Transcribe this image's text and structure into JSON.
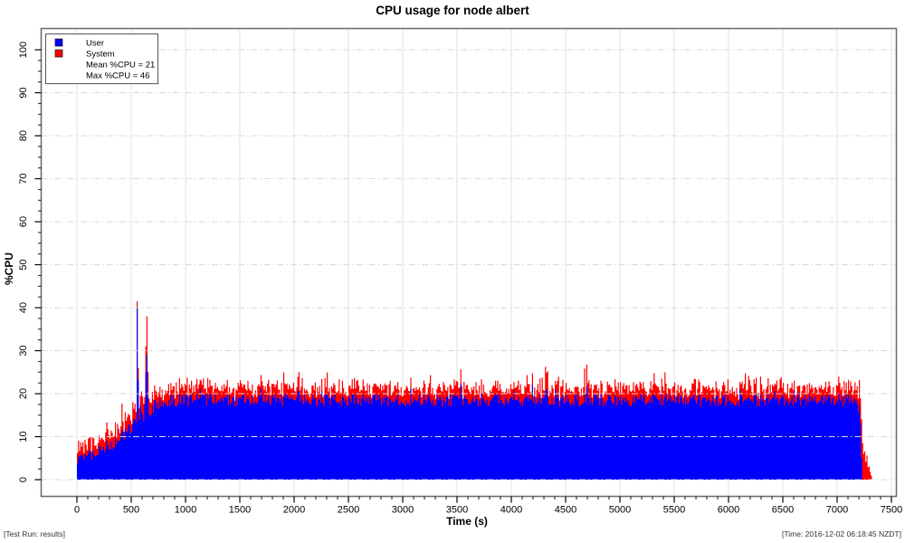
{
  "title": "CPU usage for node albert",
  "legend": {
    "items": [
      {
        "label": "User",
        "color": "#0000ff"
      },
      {
        "label": "System",
        "color": "#ff0000"
      }
    ],
    "stats": [
      "Mean %CPU = 21",
      "Max %CPU = 46"
    ]
  },
  "footer": {
    "left": "[Test Run: results]",
    "right": "[Time: 2016-12-02 06:18:45 NZDT]"
  },
  "chart_data": {
    "type": "area",
    "stacked": true,
    "title": "CPU usage for node albert",
    "xlabel": "Time (s)",
    "ylabel": "%CPU",
    "xlim": [
      0,
      7500
    ],
    "ylim": [
      0,
      100
    ],
    "x_ticks": [
      0,
      500,
      1000,
      1500,
      2000,
      2500,
      3000,
      3500,
      4000,
      4500,
      5000,
      5500,
      6000,
      6500,
      7000,
      7500
    ],
    "x_minor_step": 100,
    "y_ticks": [
      0,
      10,
      20,
      30,
      40,
      50,
      60,
      70,
      80,
      90,
      100
    ],
    "y_minor_step": 2.5,
    "grid": {
      "vertical": "solid",
      "horizontal": "dash-dot",
      "color": "#d9d9d9"
    },
    "legend_position": "top-left",
    "stats": {
      "mean_pct_cpu": 21,
      "max_pct_cpu": 46
    },
    "sample_step_s": 10,
    "t_start": 0,
    "t_end": 7320,
    "series": [
      {
        "name": "User",
        "color": "#0000ff",
        "mean_keypoints": [
          [
            0,
            5
          ],
          [
            150,
            6
          ],
          [
            300,
            8
          ],
          [
            450,
            11
          ],
          [
            600,
            14.5
          ],
          [
            750,
            17.5
          ],
          [
            900,
            18.5
          ],
          [
            7150,
            18.5
          ],
          [
            7205,
            16
          ],
          [
            7218,
            8
          ],
          [
            7225,
            0
          ],
          [
            7320,
            0
          ]
        ],
        "noise_amp": 1.5,
        "spike_prob": 0.05,
        "spike_amp": 3.0
      },
      {
        "name": "System",
        "color": "#ff0000",
        "mean_keypoints": [
          [
            0,
            2.2
          ],
          [
            450,
            3
          ],
          [
            900,
            2.6
          ],
          [
            7150,
            2.6
          ],
          [
            7210,
            5
          ],
          [
            7225,
            9
          ],
          [
            7240,
            7
          ],
          [
            7265,
            4
          ],
          [
            7300,
            3
          ],
          [
            7320,
            0
          ]
        ],
        "noise_amp": 1.3,
        "spike_prob": 0.1,
        "spike_amp": 3.0
      }
    ],
    "spike_events": [
      {
        "t": 550,
        "user": 40,
        "system": 1.5
      },
      {
        "t": 560,
        "user": 23,
        "system": 3
      },
      {
        "t": 628,
        "user": 25,
        "system": 6
      },
      {
        "t": 636,
        "user": 33,
        "system": 5
      },
      {
        "t": 644,
        "user": 29,
        "system": 9
      },
      {
        "t": 652,
        "user": 19,
        "system": 6
      }
    ]
  }
}
